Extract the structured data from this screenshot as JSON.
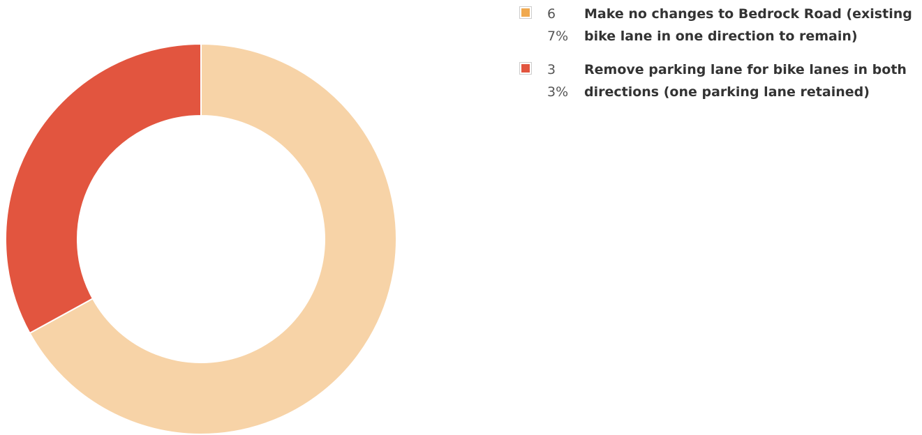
{
  "chart_data": {
    "type": "pie",
    "variant": "donut",
    "title": "",
    "slices": [
      {
        "label": "Make no changes to Bedrock Road (existing bike lane in one direction to remain)",
        "value": 67,
        "value_text": "67%",
        "legend_color": "#f0a94f",
        "slice_color": "#f7d3a7"
      },
      {
        "label": "Remove parking lane for bike lanes in both directions (one parking lane retained)",
        "value": 33,
        "value_text": "33%",
        "legend_color": "#e2553f",
        "slice_color": "#e2553f"
      }
    ],
    "legend_position": "right"
  }
}
